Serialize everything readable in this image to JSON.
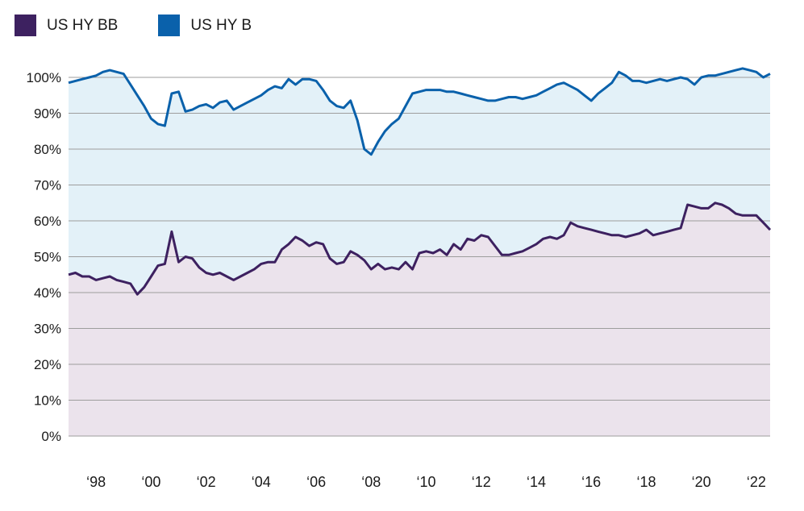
{
  "legend_note": "legend labels come from chart_data.series names",
  "chart_data": {
    "type": "area",
    "title": "",
    "xlabel": "",
    "ylabel": "",
    "x_start": 1997,
    "x_step": 0.25,
    "x_end": 2022.5,
    "ylim": [
      0,
      105
    ],
    "grid": "horizontal",
    "grid_color": "#9d9d9d",
    "text_color": "#1a1a1a",
    "legend_position": "top-left",
    "y_ticks": [
      {
        "value": 0,
        "label": "0%"
      },
      {
        "value": 10,
        "label": "10%"
      },
      {
        "value": 20,
        "label": "20%"
      },
      {
        "value": 30,
        "label": "30%"
      },
      {
        "value": 40,
        "label": "40%"
      },
      {
        "value": 50,
        "label": "50%"
      },
      {
        "value": 60,
        "label": "60%"
      },
      {
        "value": 70,
        "label": "70%"
      },
      {
        "value": 80,
        "label": "80%"
      },
      {
        "value": 90,
        "label": "90%"
      },
      {
        "value": 100,
        "label": "100%"
      }
    ],
    "x_ticks": [
      {
        "year": 1998,
        "label": "‘98"
      },
      {
        "year": 2000,
        "label": "‘00"
      },
      {
        "year": 2002,
        "label": "‘02"
      },
      {
        "year": 2004,
        "label": "‘04"
      },
      {
        "year": 2006,
        "label": "‘06"
      },
      {
        "year": 2008,
        "label": "‘08"
      },
      {
        "year": 2010,
        "label": "‘10"
      },
      {
        "year": 2012,
        "label": "‘12"
      },
      {
        "year": 2014,
        "label": "‘14"
      },
      {
        "year": 2016,
        "label": "‘16"
      },
      {
        "year": 2018,
        "label": "‘18"
      },
      {
        "year": 2020,
        "label": "‘20"
      },
      {
        "year": 2022,
        "label": "‘22"
      }
    ],
    "series": [
      {
        "name": "US HY BB",
        "color": "#3d2160",
        "fill": "#ebe3ec",
        "values": [
          45,
          45.5,
          44.5,
          44.5,
          43.5,
          44,
          44.5,
          43.5,
          43,
          42.5,
          39.5,
          41.5,
          44.5,
          47.5,
          48,
          57,
          48.5,
          50,
          49.5,
          47,
          45.5,
          45,
          45.5,
          44.5,
          43.5,
          44.5,
          45.5,
          46.5,
          48,
          48.5,
          48.5,
          52,
          53.5,
          55.5,
          54.5,
          53,
          54,
          53.5,
          49.5,
          48,
          48.5,
          51.5,
          50.5,
          49,
          46.5,
          48,
          46.5,
          47,
          46.5,
          48.5,
          46.5,
          51,
          51.5,
          51,
          52,
          50.5,
          53.5,
          52,
          55,
          54.5,
          56,
          55.5,
          53,
          50.5,
          50.5,
          51,
          51.5,
          52.5,
          53.5,
          55,
          55.5,
          55,
          56,
          59.5,
          58.5,
          58,
          57.5,
          57,
          56.5,
          56,
          56,
          55.5,
          56,
          56.5,
          57.5,
          56,
          56.5,
          57,
          57.5,
          58,
          64.5,
          64,
          63.5,
          63.5,
          65,
          64.5,
          63.5,
          62,
          61.5,
          61.5,
          61.5,
          59.5,
          57.5
        ]
      },
      {
        "name": "US HY B",
        "color": "#0a61ab",
        "fill": "#e3f1f8",
        "values": [
          98.5,
          99,
          99.5,
          100,
          100.5,
          101.5,
          102,
          101.5,
          101,
          98,
          95,
          92,
          88.5,
          87,
          86.5,
          95.5,
          96,
          90.5,
          91,
          92,
          92.5,
          91.5,
          93,
          93.5,
          91,
          92,
          93,
          94,
          95,
          96.5,
          97.5,
          97,
          99.5,
          98,
          99.5,
          99.5,
          99,
          96.5,
          93.5,
          92,
          91.5,
          93.5,
          88,
          80,
          78.5,
          82,
          85,
          87,
          88.5,
          92,
          95.5,
          96,
          96.5,
          96.5,
          96.5,
          96,
          96,
          95.5,
          95,
          94.5,
          94,
          93.5,
          93.5,
          94,
          94.5,
          94.5,
          94,
          94.5,
          95,
          96,
          97,
          98,
          98.5,
          97.5,
          96.5,
          95,
          93.5,
          95.5,
          97,
          98.5,
          101.5,
          100.5,
          99,
          99,
          98.5,
          99,
          99.5,
          99,
          99.5,
          100,
          99.5,
          98,
          100,
          100.5,
          100.5,
          101,
          101.5,
          102,
          102.5,
          102,
          101.5,
          100,
          101
        ]
      }
    ]
  }
}
